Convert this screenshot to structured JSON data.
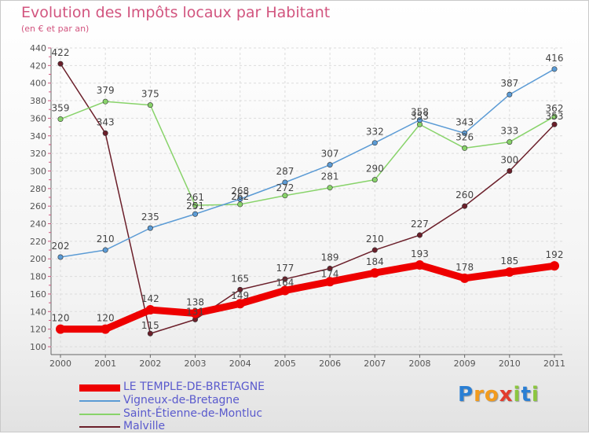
{
  "chart_data": {
    "type": "line",
    "title": "Evolution des Impôts locaux par Habitant",
    "subtitle": "(en € et par an)",
    "x": [
      "2000",
      "2001",
      "2002",
      "2003",
      "2004",
      "2005",
      "2006",
      "2007",
      "2008",
      "2009",
      "2010",
      "2011"
    ],
    "ylim": [
      100,
      440
    ],
    "yticks": [
      100,
      120,
      140,
      160,
      180,
      200,
      220,
      240,
      260,
      280,
      300,
      320,
      340,
      360,
      380,
      400,
      420,
      440
    ],
    "grid": true,
    "legend_position": "bottom-left",
    "series": [
      {
        "name": "LE TEMPLE-DE-BRETAGNE",
        "color": "#ee0000",
        "values": [
          120,
          120,
          142,
          138,
          149,
          164,
          174,
          184,
          193,
          178,
          185,
          192
        ],
        "labels": [
          "120",
          "120",
          "142",
          "138",
          "",
          "",
          "",
          "184",
          "193",
          "178",
          "185",
          "192"
        ]
      },
      {
        "name": "Vigneux-de-Bretagne",
        "color": "#5b9bd5",
        "values": [
          202,
          210,
          235,
          251,
          268,
          287,
          307,
          332,
          358,
          343,
          387,
          416
        ],
        "labels": [
          "202",
          "210",
          "235",
          "",
          "",
          "287",
          "307",
          "332",
          "",
          "343",
          "387",
          "416"
        ]
      },
      {
        "name": "Saint-Étienne-de-Montluc",
        "color": "#88d36a",
        "values": [
          359,
          379,
          375,
          261,
          262,
          272,
          281,
          290,
          353,
          326,
          333,
          362
        ],
        "labels": [
          "359",
          "379",
          "375",
          "",
          "",
          "",
          "281",
          "290",
          "",
          "326",
          "333",
          ""
        ]
      },
      {
        "name": "Malville",
        "color": "#6b1f2a",
        "values": [
          422,
          343,
          115,
          131,
          165,
          177,
          189,
          210,
          227,
          260,
          300,
          353
        ],
        "labels": [
          "422",
          "343",
          "",
          "",
          "165",
          "177",
          "189",
          "210",
          "227",
          "260",
          "300",
          ""
        ]
      }
    ],
    "overlap_labels": [
      {
        "text": "261",
        "x": "2003",
        "y": 261
      },
      {
        "text": "251",
        "x": "2003",
        "y": 251
      },
      {
        "text": "131",
        "x": "2003",
        "y": 131
      },
      {
        "text": "115",
        "x": "2002",
        "y": 115
      },
      {
        "text": "268",
        "x": "2004",
        "y": 268
      },
      {
        "text": "262",
        "x": "2004",
        "y": 262
      },
      {
        "text": "149",
        "x": "2004",
        "y": 149
      },
      {
        "text": "272",
        "x": "2005",
        "y": 272
      },
      {
        "text": "164",
        "x": "2005",
        "y": 164
      },
      {
        "text": "174",
        "x": "2006",
        "y": 174
      },
      {
        "text": "358",
        "x": "2008",
        "y": 358
      },
      {
        "text": "353",
        "x": "2008",
        "y": 353
      },
      {
        "text": "362",
        "x": "2011",
        "y": 362
      },
      {
        "text": "353",
        "x": "2011",
        "y": 353
      }
    ]
  },
  "brand": {
    "letters": [
      "P",
      "r",
      "o",
      "x",
      "i",
      "t",
      "i"
    ],
    "colors": [
      "#2a7fd4",
      "#f29b1d",
      "#f29b1d",
      "#e23c2c",
      "#8cc63f",
      "#2a7fd4",
      "#8cc63f"
    ]
  }
}
